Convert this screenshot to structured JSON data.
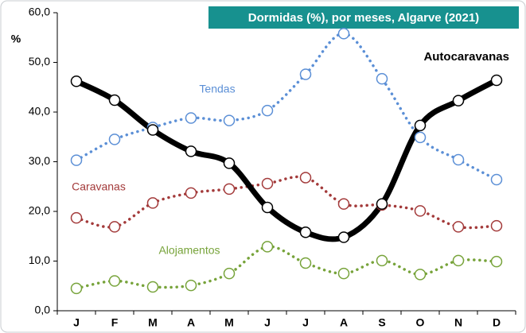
{
  "chart_data": {
    "type": "line",
    "title": "Dormidas (%), por meses, Algarve (2021)",
    "y_label": "%",
    "categories": [
      "J",
      "F",
      "M",
      "A",
      "M",
      "J",
      "J",
      "A",
      "S",
      "O",
      "N",
      "D"
    ],
    "series": [
      {
        "name": "Tendas",
        "color": "#5b8fd6",
        "values": [
          30.3,
          34.5,
          36.9,
          38.8,
          38.3,
          40.3,
          47.6,
          55.8,
          46.7,
          34.9,
          30.4,
          26.4
        ]
      },
      {
        "name": "Caravanas",
        "color": "#a33a3a",
        "values": [
          18.7,
          16.9,
          21.7,
          23.7,
          24.5,
          25.6,
          26.8,
          21.5,
          21.3,
          20.1,
          16.9,
          17.1
        ]
      },
      {
        "name": "Alojamentos",
        "color": "#77a33a",
        "values": [
          4.5,
          6.0,
          4.8,
          5.1,
          7.5,
          12.9,
          9.6,
          7.5,
          10.1,
          7.3,
          10.1,
          9.9
        ]
      },
      {
        "name": "Autocaravanas",
        "color": "#000000",
        "values": [
          46.2,
          42.4,
          36.4,
          32.1,
          29.7,
          20.8,
          15.8,
          14.8,
          21.5,
          37.3,
          42.3,
          46.4
        ]
      }
    ],
    "ylim": [
      0,
      60
    ],
    "yticks": [
      {
        "value": 0,
        "label": "0,0"
      },
      {
        "value": 10,
        "label": "10,0"
      },
      {
        "value": 20,
        "label": "20,0"
      },
      {
        "value": 30,
        "label": "30,0"
      },
      {
        "value": 40,
        "label": "40,0"
      },
      {
        "value": 50,
        "label": "50,0"
      },
      {
        "value": 60,
        "label": "60,0"
      }
    ],
    "grid": false
  }
}
